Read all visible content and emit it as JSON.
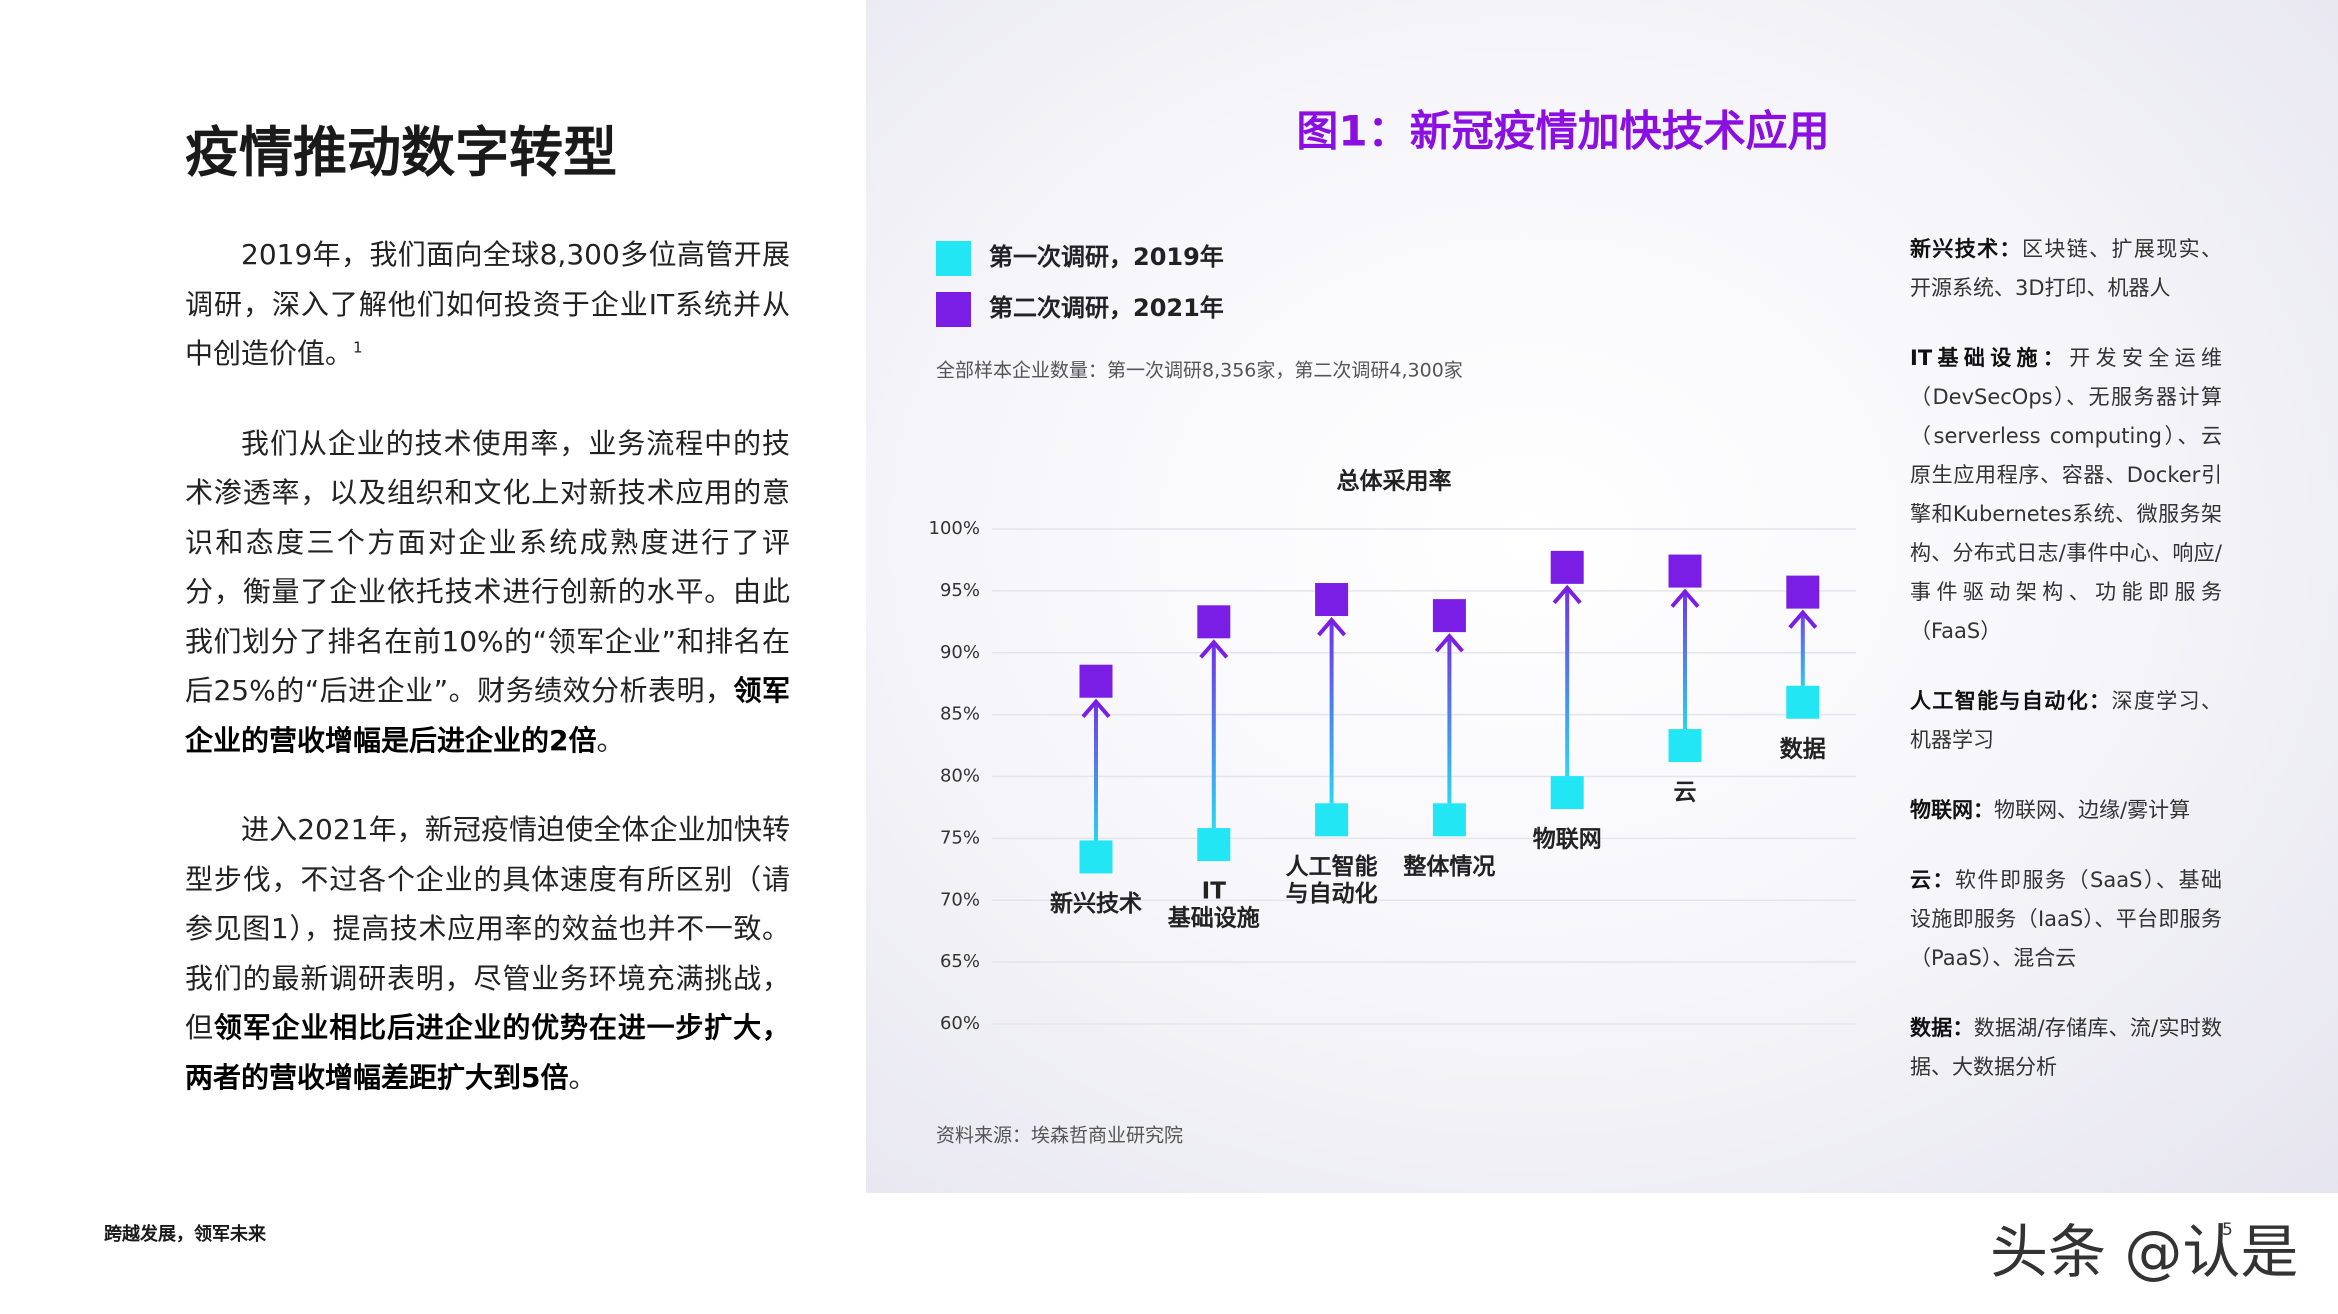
{
  "header": {
    "title": "疫情推动数字转型"
  },
  "body": {
    "paragraphs": [
      {
        "runs": [
          {
            "text": "2019年，我们面向全球8,300多位高管开展调研，深入了解他们如何投资于企业IT系统并从中创造价值。"
          },
          {
            "text": "1",
            "sup": true
          }
        ]
      },
      {
        "runs": [
          {
            "text": "我们从企业的技术使用率，业务流程中的技术渗透率，以及组织和文化上对新技术应用的意识和态度三个方面对企业系统成熟度进行了评分，衡量了企业依托技术进行创新的水平。由此我们划分了排名在前10%的“领军企业”和排名在后25%的“后进企业”。财务绩效分析表明，"
          },
          {
            "text": "领军企业的营收增幅是后进企业的2倍",
            "bold": true
          },
          {
            "text": "。"
          }
        ]
      },
      {
        "runs": [
          {
            "text": "进入2021年，新冠疫情迫使全体企业加快转型步伐，不过各个企业的具体速度有所区别（请参见图1），提高技术应用率的效益也并不一致。我们的最新调研表明，尽管业务环境充满挑战，但"
          },
          {
            "text": "领军企业相比后进企业的优势在进一步扩大，两者的营收增幅差距扩大到5倍",
            "bold": true
          },
          {
            "text": "。"
          }
        ]
      }
    ]
  },
  "chart_data": {
    "type": "dumbbell",
    "title": "图1：新冠疫情加快技术应用",
    "subtitle": "全部样本企业数量：第一次调研8,356家，第二次调研4,300家",
    "plot_title": "总体采用率",
    "source": "资料来源：埃森哲商业研究院",
    "categories": [
      "新兴技术",
      "IT\n基础设施",
      "人工智能\n与自动化",
      "整体情况",
      "物联网",
      "云",
      "数据"
    ],
    "series": [
      {
        "name": "第一次调研，2019年",
        "color": "#22e6f4",
        "values": [
          73.5,
          74.5,
          76.5,
          76.5,
          78.7,
          82.5,
          86
        ]
      },
      {
        "name": "第二次调研，2021年",
        "color": "#7a1ee6",
        "values": [
          87.7,
          92.5,
          94.3,
          93,
          96.9,
          96.6,
          94.9
        ]
      }
    ],
    "ylim": [
      60,
      100
    ],
    "yticks": [
      {
        "value": 60,
        "label": "60%"
      },
      {
        "value": 65,
        "label": "65%"
      },
      {
        "value": 70,
        "label": "70%"
      },
      {
        "value": 75,
        "label": "75%"
      },
      {
        "value": 80,
        "label": "80%"
      },
      {
        "value": 85,
        "label": "85%"
      },
      {
        "value": 90,
        "label": "90%"
      },
      {
        "value": 95,
        "label": "95%"
      },
      {
        "value": 100,
        "label": "100%"
      }
    ],
    "grid": true,
    "title_color": "#8a0fe0"
  },
  "sidebar": {
    "items": [
      {
        "term": "新兴技术：",
        "desc": "区块链、扩展现实、开源系统、3D打印、机器人"
      },
      {
        "term": "IT基础设施：",
        "desc": "开发安全运维（DevSecOps）、无服务器计算（serverless computing）、云原生应用程序、容器、Docker引擎和Kubernetes系统、微服务架构、分布式日志/事件中心、响应/事件驱动架构、功能即服务（FaaS）"
      },
      {
        "term": "人工智能与自动化：",
        "desc": "深度学习、机器学习"
      },
      {
        "term": "物联网：",
        "desc": "物联网、边缘/雾计算"
      },
      {
        "term": "云：",
        "desc": "软件即服务（SaaS）、基础设施即服务（IaaS）、平台即服务（PaaS）、混合云"
      },
      {
        "term": "数据：",
        "desc": "数据湖/存储库、流/实时数据、大数据分析"
      }
    ]
  },
  "footer": {
    "text": "跨越发展，领军未来",
    "page": "5"
  },
  "watermark": "头条 @认是"
}
